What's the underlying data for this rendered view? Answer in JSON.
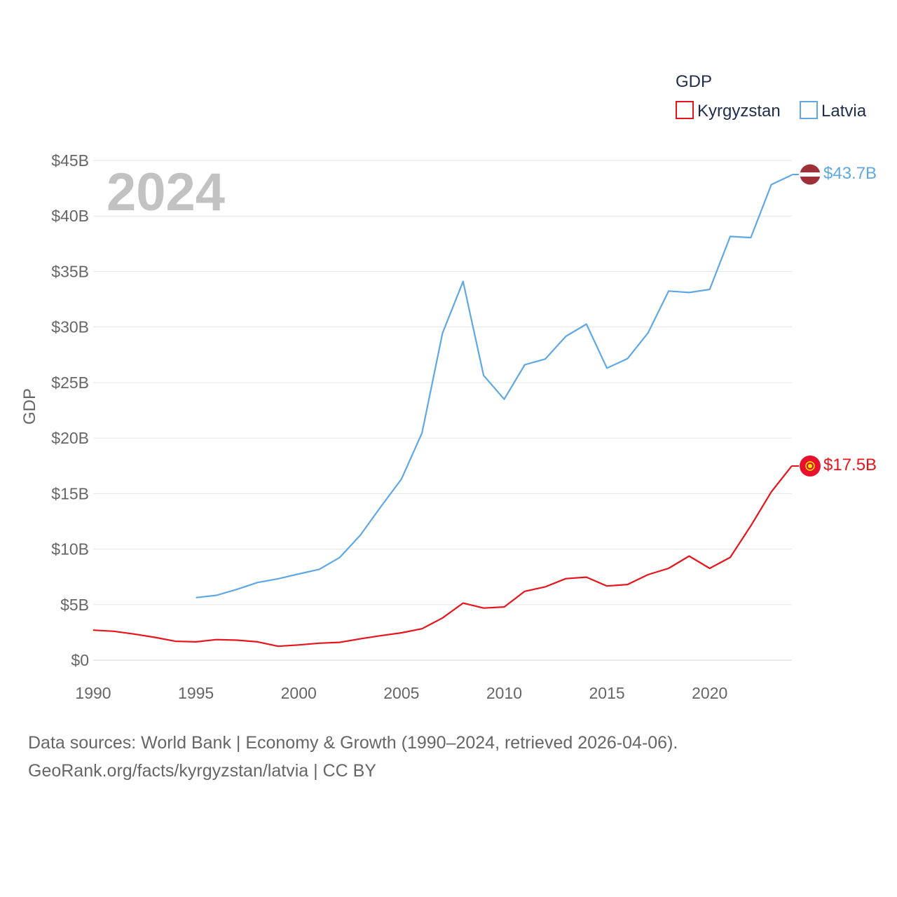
{
  "chart_data": {
    "type": "line",
    "year_label": "2024",
    "ylabel": "GDP",
    "xlabel": "",
    "ylim": [
      0,
      45
    ],
    "xlim": [
      1990,
      2024
    ],
    "y_ticks": [
      0,
      5,
      10,
      15,
      20,
      25,
      30,
      35,
      40,
      45
    ],
    "y_tick_labels": [
      "$0",
      "$5B",
      "$10B",
      "$15B",
      "$20B",
      "$25B",
      "$30B",
      "$35B",
      "$40B",
      "$45B"
    ],
    "x_ticks": [
      1990,
      1995,
      2000,
      2005,
      2010,
      2015,
      2020
    ],
    "x_tick_labels": [
      "1990",
      "1995",
      "2000",
      "2005",
      "2010",
      "2015",
      "2020"
    ],
    "grid": true,
    "legend": {
      "title": "GDP",
      "placement": "top-right",
      "entries": [
        "Kyrgyzstan",
        "Latvia"
      ]
    },
    "series": [
      {
        "name": "Kyrgyzstan",
        "color": "#e8141c",
        "end_label": "$17.5B",
        "flag_icon": "kyrgyzstan-flag-icon",
        "x": [
          1990,
          1991,
          1992,
          1993,
          1994,
          1995,
          1996,
          1997,
          1998,
          1999,
          2000,
          2001,
          2002,
          2003,
          2004,
          2005,
          2006,
          2007,
          2008,
          2009,
          2010,
          2011,
          2012,
          2013,
          2014,
          2015,
          2016,
          2017,
          2018,
          2019,
          2020,
          2021,
          2022,
          2023,
          2024
        ],
        "values": [
          2.7,
          2.6,
          2.35,
          2.05,
          1.7,
          1.65,
          1.85,
          1.8,
          1.65,
          1.25,
          1.37,
          1.53,
          1.6,
          1.92,
          2.2,
          2.46,
          2.83,
          3.8,
          5.14,
          4.69,
          4.79,
          6.2,
          6.6,
          7.34,
          7.47,
          6.68,
          6.81,
          7.7,
          8.27,
          9.37,
          8.27,
          9.25,
          12.1,
          15.16,
          17.5
        ]
      },
      {
        "name": "Latvia",
        "color": "#5fa8e3",
        "end_label": "$43.7B",
        "flag_icon": "latvia-flag-icon",
        "x": [
          1995,
          1996,
          1997,
          1998,
          1999,
          2000,
          2001,
          2002,
          2003,
          2004,
          2005,
          2006,
          2007,
          2008,
          2009,
          2010,
          2011,
          2012,
          2013,
          2014,
          2015,
          2016,
          2017,
          2018,
          2019,
          2020,
          2021,
          2022,
          2023,
          2024
        ],
        "values": [
          5.63,
          5.84,
          6.38,
          6.99,
          7.33,
          7.76,
          8.18,
          9.25,
          11.26,
          13.82,
          16.31,
          20.46,
          29.46,
          34.1,
          25.64,
          23.5,
          26.6,
          27.12,
          29.16,
          30.26,
          26.3,
          27.15,
          29.47,
          33.24,
          33.11,
          33.39,
          38.16,
          38.05,
          42.83,
          43.7
        ]
      }
    ]
  },
  "footer": {
    "line1": "Data sources: World Bank | Economy & Growth (1990–2024, retrieved 2026-04-06).",
    "line2": "GeoRank.org/facts/kyrgyzstan/latvia | CC BY"
  }
}
